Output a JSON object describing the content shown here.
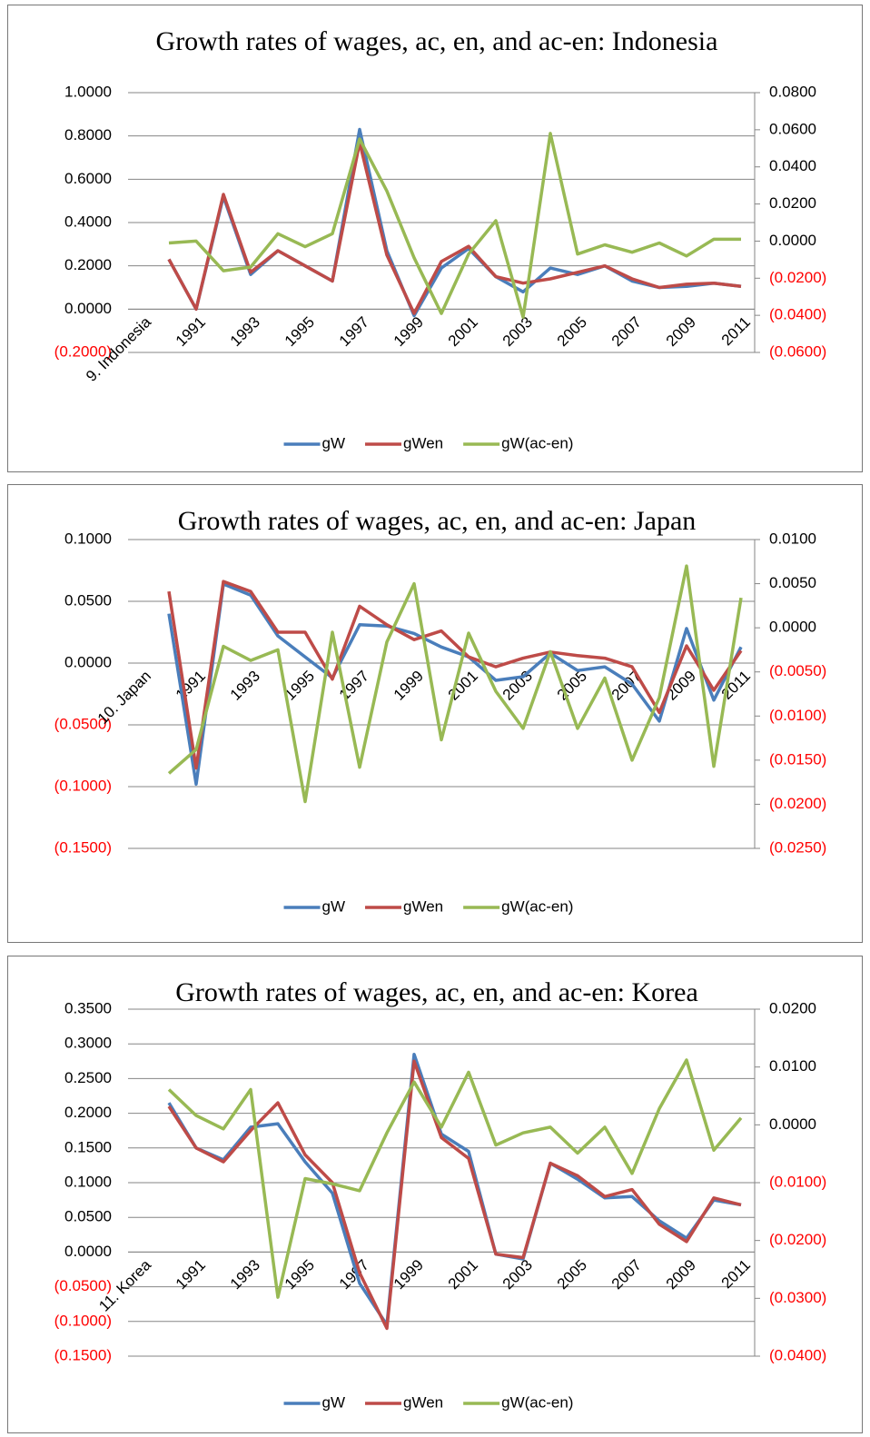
{
  "chart_data": [
    {
      "type": "line",
      "title": "Growth rates of wages, ac, en, and ac-en: Indonesia",
      "categories": [
        "9. Indonesia",
        null,
        "1991",
        null,
        "1993",
        null,
        "1995",
        null,
        "1997",
        null,
        "1999",
        null,
        "2001",
        null,
        "2003",
        null,
        "2005",
        null,
        "2007",
        null,
        "2009",
        null,
        "2011"
      ],
      "series": [
        {
          "name": "gW",
          "color": "#4a7ebb",
          "values": [
            null,
            0.23,
            0.0,
            0.52,
            0.16,
            0.27,
            0.2,
            0.13,
            0.83,
            0.27,
            -0.03,
            0.19,
            0.28,
            0.15,
            0.08,
            0.19,
            0.16,
            0.2,
            0.13,
            0.1,
            0.105,
            0.12,
            0.105
          ]
        },
        {
          "name": "gWen",
          "color": "#be4b48",
          "values": [
            null,
            0.23,
            0.0,
            0.53,
            0.17,
            0.27,
            0.2,
            0.13,
            0.77,
            0.25,
            -0.02,
            0.22,
            0.29,
            0.15,
            0.12,
            0.14,
            0.17,
            0.2,
            0.14,
            0.1,
            0.115,
            0.12,
            0.105
          ]
        },
        {
          "name": "gW(ac-en)",
          "color": "#98b954",
          "axis": "y2",
          "values": [
            null,
            -0.001,
            0.0,
            -0.016,
            -0.014,
            0.004,
            -0.003,
            0.004,
            0.055,
            0.027,
            -0.009,
            -0.039,
            -0.007,
            0.011,
            -0.041,
            0.058,
            -0.007,
            -0.002,
            -0.006,
            -0.001,
            -0.008,
            0.001,
            0.001
          ]
        }
      ],
      "ylim": [
        -0.2,
        1.0
      ],
      "yticks": [
        {
          "value": -0.2,
          "label": "(0.2000)"
        },
        {
          "value": 0,
          "label": "0.0000"
        },
        {
          "value": 0.2,
          "label": "0.2000"
        },
        {
          "value": 0.4,
          "label": "0.4000"
        },
        {
          "value": 0.6,
          "label": "0.6000"
        },
        {
          "value": 0.8,
          "label": "0.8000"
        },
        {
          "value": 1.0,
          "label": "1.0000"
        }
      ],
      "y2lim": [
        -0.06,
        0.08
      ],
      "y2ticks": [
        {
          "value": -0.06,
          "label": "(0.0600)"
        },
        {
          "value": -0.04,
          "label": "(0.0400)"
        },
        {
          "value": -0.02,
          "label": "(0.0200)"
        },
        {
          "value": 0,
          "label": "0.0000"
        },
        {
          "value": 0.02,
          "label": "0.0200"
        },
        {
          "value": 0.04,
          "label": "0.0400"
        },
        {
          "value": 0.06,
          "label": "0.0600"
        },
        {
          "value": 0.08,
          "label": "0.0800"
        }
      ],
      "grid": true,
      "legend": "bottom",
      "negative_tick_color": "#ff0000"
    },
    {
      "type": "line",
      "title": "Growth rates of wages, ac, en, and ac-en: Japan",
      "categories": [
        "10. Japan",
        null,
        "1991",
        null,
        "1993",
        null,
        "1995",
        null,
        "1997",
        null,
        "1999",
        null,
        "2001",
        null,
        "2003",
        null,
        "2005",
        null,
        "2007",
        null,
        "2009",
        null,
        "2011"
      ],
      "series": [
        {
          "name": "gW",
          "color": "#4a7ebb",
          "values": [
            null,
            0.04,
            -0.098,
            0.064,
            0.055,
            0.022,
            0.005,
            -0.012,
            0.031,
            0.03,
            0.024,
            0.013,
            0.005,
            -0.014,
            -0.011,
            0.008,
            -0.006,
            -0.003,
            -0.017,
            -0.047,
            0.028,
            -0.03,
            0.013
          ]
        },
        {
          "name": "gWen",
          "color": "#be4b48",
          "values": [
            null,
            0.058,
            -0.085,
            0.066,
            0.058,
            0.025,
            0.025,
            -0.013,
            0.046,
            0.031,
            0.019,
            0.026,
            0.005,
            -0.003,
            0.004,
            0.009,
            0.006,
            0.004,
            -0.003,
            -0.04,
            0.014,
            -0.022,
            0.01
          ]
        },
        {
          "name": "gW(ac-en)",
          "color": "#98b954",
          "axis": "y2",
          "values": [
            null,
            -0.0165,
            -0.0138,
            -0.0021,
            -0.0037,
            -0.0025,
            -0.0197,
            -0.0005,
            -0.0158,
            -0.0016,
            0.005,
            -0.0127,
            -0.0006,
            -0.0072,
            -0.0114,
            -0.0027,
            -0.0114,
            -0.0057,
            -0.015,
            -0.0079,
            0.007,
            -0.0157,
            0.0034
          ]
        }
      ],
      "ylim": [
        -0.15,
        0.1
      ],
      "yticks": [
        {
          "value": -0.15,
          "label": "(0.1500)"
        },
        {
          "value": -0.1,
          "label": "(0.1000)"
        },
        {
          "value": -0.05,
          "label": "(0.0500)"
        },
        {
          "value": 0,
          "label": "0.0000"
        },
        {
          "value": 0.05,
          "label": "0.0500"
        },
        {
          "value": 0.1,
          "label": "0.1000"
        }
      ],
      "y2lim": [
        -0.025,
        0.01
      ],
      "y2ticks": [
        {
          "value": -0.025,
          "label": "(0.0250)"
        },
        {
          "value": -0.02,
          "label": "(0.0200)"
        },
        {
          "value": -0.015,
          "label": "(0.0150)"
        },
        {
          "value": -0.01,
          "label": "(0.0100)"
        },
        {
          "value": -0.005,
          "label": "(0.0050)"
        },
        {
          "value": 0,
          "label": "0.0000"
        },
        {
          "value": 0.005,
          "label": "0.0050"
        },
        {
          "value": 0.01,
          "label": "0.0100"
        }
      ],
      "grid": true,
      "legend": "bottom",
      "negative_tick_color": "#ff0000"
    },
    {
      "type": "line",
      "title": "Growth rates of wages, ac, en, and ac-en: Korea",
      "categories": [
        "11. Korea",
        null,
        "1991",
        null,
        "1993",
        null,
        "1995",
        null,
        "1997",
        null,
        "1999",
        null,
        "2001",
        null,
        "2003",
        null,
        "2005",
        null,
        "2007",
        null,
        "2009",
        null,
        "2011"
      ],
      "series": [
        {
          "name": "gW",
          "color": "#4a7ebb",
          "values": [
            null,
            0.215,
            0.15,
            0.133,
            0.18,
            0.185,
            0.13,
            0.085,
            -0.045,
            -0.105,
            0.285,
            0.17,
            0.145,
            -0.003,
            -0.01,
            0.128,
            0.105,
            0.078,
            0.08,
            0.045,
            0.02,
            0.075,
            0.068
          ]
        },
        {
          "name": "gWen",
          "color": "#be4b48",
          "values": [
            null,
            0.21,
            0.15,
            0.13,
            0.175,
            0.215,
            0.14,
            0.1,
            -0.03,
            -0.11,
            0.275,
            0.165,
            0.135,
            -0.003,
            -0.008,
            0.128,
            0.11,
            0.08,
            0.09,
            0.04,
            0.015,
            0.078,
            0.068
          ]
        },
        {
          "name": "gW(ac-en)",
          "color": "#98b954",
          "axis": "y2",
          "values": [
            null,
            0.0061,
            0.0016,
            -0.0007,
            0.0061,
            -0.0298,
            -0.0093,
            -0.0102,
            -0.0114,
            -0.0014,
            0.0074,
            -0.0004,
            0.0091,
            -0.0035,
            -0.0014,
            -0.0004,
            -0.0049,
            -0.0004,
            -0.0084,
            0.0028,
            0.0112,
            -0.0044,
            0.0012
          ]
        }
      ],
      "ylim": [
        -0.15,
        0.35
      ],
      "yticks": [
        {
          "value": -0.15,
          "label": "(0.1500)"
        },
        {
          "value": -0.1,
          "label": "(0.1000)"
        },
        {
          "value": -0.05,
          "label": "(0.0500)"
        },
        {
          "value": 0,
          "label": "0.0000"
        },
        {
          "value": 0.05,
          "label": "0.0500"
        },
        {
          "value": 0.1,
          "label": "0.1000"
        },
        {
          "value": 0.15,
          "label": "0.1500"
        },
        {
          "value": 0.2,
          "label": "0.2000"
        },
        {
          "value": 0.25,
          "label": "0.2500"
        },
        {
          "value": 0.3,
          "label": "0.3000"
        },
        {
          "value": 0.35,
          "label": "0.3500"
        }
      ],
      "y2lim": [
        -0.04,
        0.02
      ],
      "y2ticks": [
        {
          "value": -0.04,
          "label": "(0.0400)"
        },
        {
          "value": -0.03,
          "label": "(0.0300)"
        },
        {
          "value": -0.02,
          "label": "(0.0200)"
        },
        {
          "value": -0.01,
          "label": "(0.0100)"
        },
        {
          "value": 0,
          "label": "0.0000"
        },
        {
          "value": 0.01,
          "label": "0.0100"
        },
        {
          "value": 0.02,
          "label": "0.0200"
        }
      ],
      "grid": true,
      "legend": "bottom",
      "negative_tick_color": "#ff0000"
    }
  ]
}
